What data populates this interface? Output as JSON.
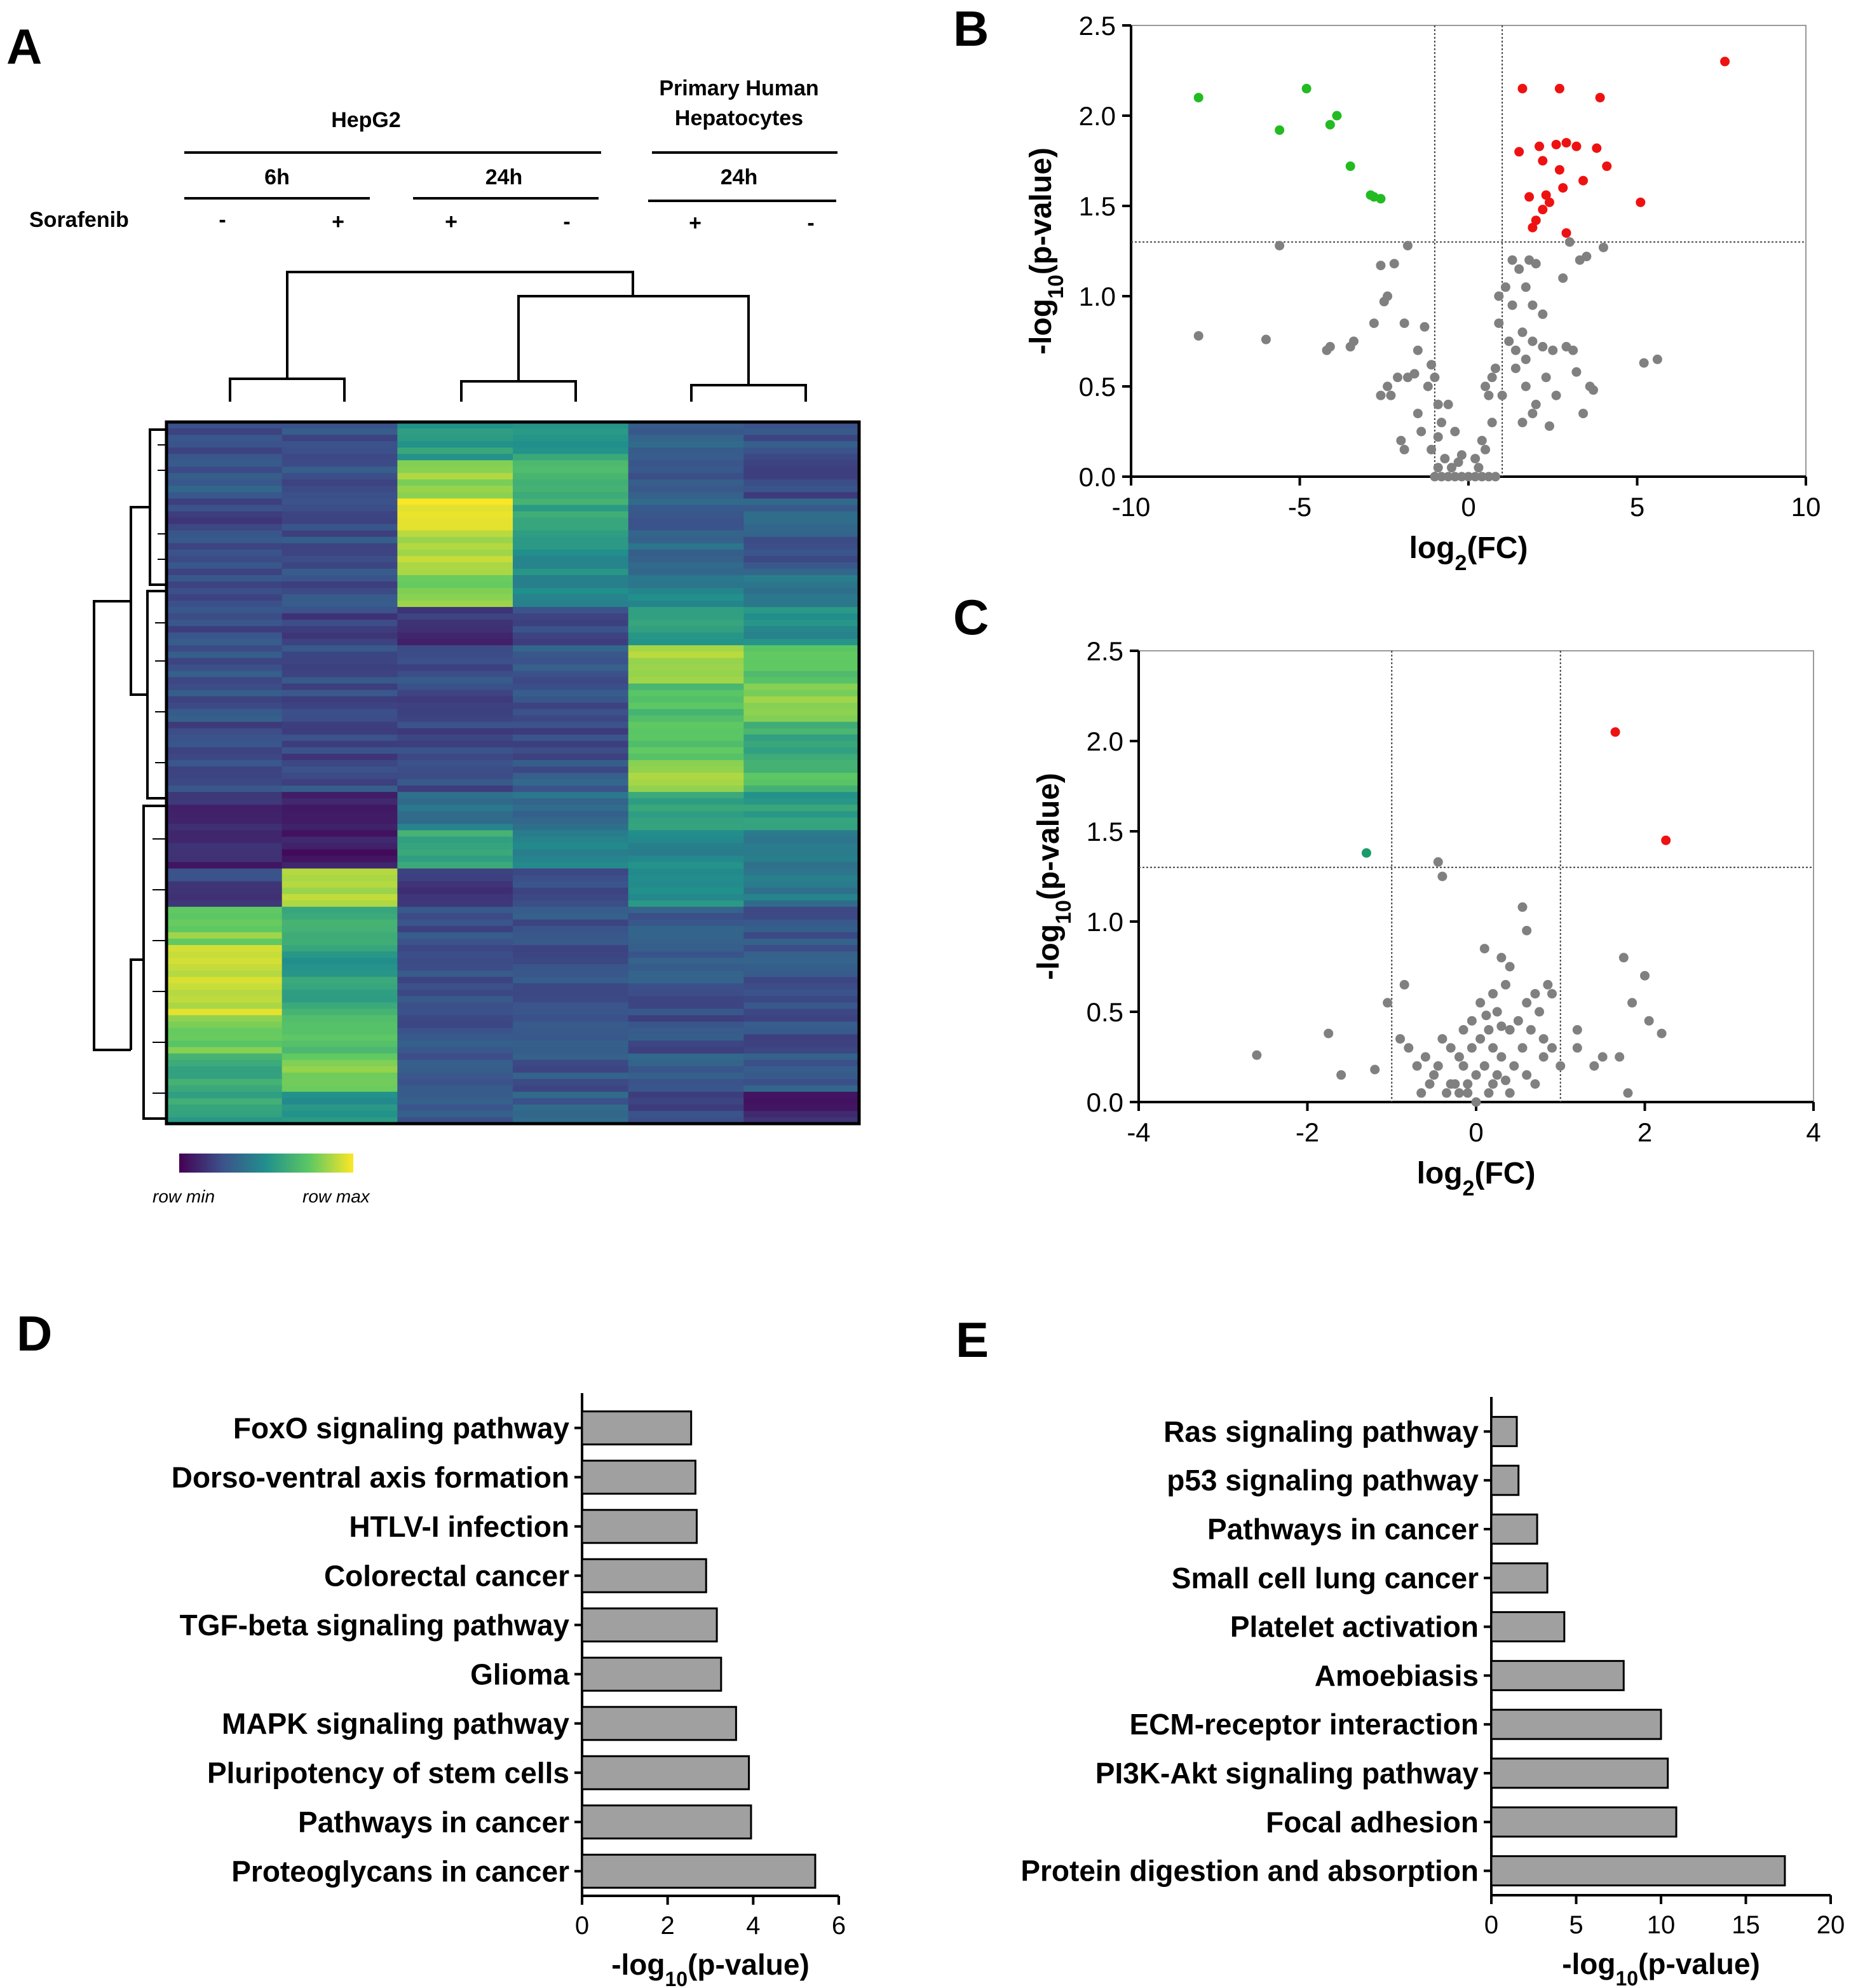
{
  "panels": {
    "A": "A",
    "B": "B",
    "C": "C",
    "D": "D",
    "E": "E"
  },
  "heatmap": {
    "group_hepg2": "HepG2",
    "group_phh_line1": "Primary Human",
    "group_phh_line2": "Hepatocytes",
    "time_6h": "6h",
    "time_24h_hepg2": "24h",
    "time_24h_phh": "24h",
    "sorafenib_label": "Sorafenib",
    "signs": [
      "-",
      "+",
      "+",
      "-",
      "+",
      "-"
    ],
    "legend_min": "row min",
    "legend_max": "row max",
    "palette": [
      "#440154",
      "#3b528b",
      "#21908c",
      "#5dc863",
      "#fde725"
    ],
    "columns": 6,
    "row_segments": [
      [
        0.25,
        0.25,
        0.55,
        0.55,
        0.3,
        0.25
      ],
      [
        0.28,
        0.25,
        0.85,
        0.65,
        0.28,
        0.22
      ],
      [
        0.22,
        0.22,
        0.95,
        0.6,
        0.3,
        0.3
      ],
      [
        0.26,
        0.26,
        0.88,
        0.5,
        0.35,
        0.28
      ],
      [
        0.25,
        0.24,
        0.8,
        0.45,
        0.45,
        0.38
      ],
      [
        0.24,
        0.2,
        0.15,
        0.2,
        0.55,
        0.5
      ],
      [
        0.26,
        0.25,
        0.25,
        0.28,
        0.85,
        0.75
      ],
      [
        0.25,
        0.22,
        0.22,
        0.24,
        0.7,
        0.8
      ],
      [
        0.22,
        0.2,
        0.22,
        0.22,
        0.75,
        0.62
      ],
      [
        0.26,
        0.25,
        0.24,
        0.28,
        0.82,
        0.7
      ],
      [
        0.15,
        0.1,
        0.4,
        0.35,
        0.6,
        0.55
      ],
      [
        0.12,
        0.08,
        0.62,
        0.45,
        0.48,
        0.42
      ],
      [
        0.2,
        0.85,
        0.15,
        0.25,
        0.5,
        0.4
      ],
      [
        0.8,
        0.65,
        0.25,
        0.25,
        0.3,
        0.28
      ],
      [
        0.88,
        0.55,
        0.25,
        0.24,
        0.28,
        0.26
      ],
      [
        0.92,
        0.6,
        0.26,
        0.26,
        0.26,
        0.26
      ],
      [
        0.78,
        0.7,
        0.25,
        0.25,
        0.24,
        0.25
      ],
      [
        0.62,
        0.8,
        0.28,
        0.27,
        0.3,
        0.28
      ],
      [
        0.58,
        0.52,
        0.27,
        0.3,
        0.22,
        0.1
      ]
    ]
  },
  "chart_data": [
    {
      "id": "B",
      "type": "scatter",
      "xlabel": "log2(FC)",
      "ylabel": "-log10(p-value)",
      "xlim": [
        -10,
        10
      ],
      "ylim": [
        0,
        2.5
      ],
      "xticks": [
        "-10",
        "-5",
        "0",
        "5",
        "10"
      ],
      "yticks": [
        "0.0",
        "0.5",
        "1.0",
        "1.5",
        "2.0",
        "2.5"
      ],
      "thresholds": {
        "x": [
          -1,
          1
        ],
        "y": 1.3
      },
      "colors": {
        "down": "#22bb22",
        "up": "#ee1111",
        "ns": "#808080"
      },
      "down": [
        [
          -8.0,
          2.1
        ],
        [
          -4.8,
          2.15
        ],
        [
          -5.6,
          1.92
        ],
        [
          -4.1,
          1.95
        ],
        [
          -3.9,
          2.0
        ],
        [
          -3.5,
          1.72
        ],
        [
          -2.9,
          1.56
        ],
        [
          -2.6,
          1.54
        ],
        [
          -2.8,
          1.55
        ]
      ],
      "up": [
        [
          7.6,
          2.3
        ],
        [
          1.6,
          2.15
        ],
        [
          2.7,
          2.15
        ],
        [
          3.9,
          2.1
        ],
        [
          2.1,
          1.83
        ],
        [
          2.6,
          1.84
        ],
        [
          2.9,
          1.85
        ],
        [
          3.2,
          1.83
        ],
        [
          3.8,
          1.82
        ],
        [
          4.1,
          1.72
        ],
        [
          1.5,
          1.8
        ],
        [
          2.2,
          1.75
        ],
        [
          2.7,
          1.7
        ],
        [
          3.4,
          1.64
        ],
        [
          1.8,
          1.55
        ],
        [
          2.4,
          1.52
        ],
        [
          2.2,
          1.48
        ],
        [
          2.0,
          1.42
        ],
        [
          1.9,
          1.38
        ],
        [
          2.9,
          1.35
        ],
        [
          5.1,
          1.52
        ],
        [
          2.3,
          1.56
        ],
        [
          2.8,
          1.6
        ]
      ],
      "ns": [
        [
          -8.0,
          0.78
        ],
        [
          -6.0,
          0.76
        ],
        [
          -5.6,
          1.28
        ],
        [
          -4.1,
          0.72
        ],
        [
          -4.2,
          0.7
        ],
        [
          -3.5,
          0.72
        ],
        [
          -3.4,
          0.75
        ],
        [
          -2.6,
          1.17
        ],
        [
          -2.4,
          1.0
        ],
        [
          -2.2,
          1.18
        ],
        [
          -1.8,
          1.28
        ],
        [
          -2.5,
          0.97
        ],
        [
          -1.9,
          0.85
        ],
        [
          -2.8,
          0.85
        ],
        [
          -1.5,
          0.7
        ],
        [
          -1.3,
          0.83
        ],
        [
          -2.3,
          0.45
        ],
        [
          -2.1,
          0.55
        ],
        [
          -1.8,
          0.55
        ],
        [
          -1.6,
          0.57
        ],
        [
          -2.4,
          0.5
        ],
        [
          -2.6,
          0.45
        ],
        [
          -2.0,
          0.2
        ],
        [
          -1.9,
          0.15
        ],
        [
          -1.4,
          0.25
        ],
        [
          -1.2,
          0.5
        ],
        [
          -1.1,
          0.62
        ],
        [
          -1.0,
          0.55
        ],
        [
          -0.9,
          0.4
        ],
        [
          -0.8,
          0.3
        ],
        [
          -1.1,
          0.15
        ],
        [
          -0.9,
          0.05
        ],
        [
          -0.7,
          0.1
        ],
        [
          -0.5,
          0.05
        ],
        [
          -0.3,
          0.08
        ],
        [
          -0.2,
          0.12
        ],
        [
          0.0,
          0.0
        ],
        [
          0.2,
          0.1
        ],
        [
          0.3,
          0.05
        ],
        [
          0.4,
          0.2
        ],
        [
          0.5,
          0.15
        ],
        [
          0.6,
          0.45
        ],
        [
          0.7,
          0.55
        ],
        [
          0.8,
          0.6
        ],
        [
          1.0,
          0.45
        ],
        [
          1.2,
          0.75
        ],
        [
          1.4,
          0.7
        ],
        [
          0.9,
          1.0
        ],
        [
          1.1,
          1.05
        ],
        [
          1.3,
          1.2
        ],
        [
          1.5,
          1.15
        ],
        [
          1.8,
          1.2
        ],
        [
          2.0,
          1.18
        ],
        [
          1.7,
          1.05
        ],
        [
          1.9,
          0.95
        ],
        [
          2.2,
          0.9
        ],
        [
          1.6,
          0.8
        ],
        [
          1.4,
          0.6
        ],
        [
          1.7,
          0.65
        ],
        [
          1.9,
          0.75
        ],
        [
          2.2,
          0.72
        ],
        [
          2.5,
          0.7
        ],
        [
          2.9,
          0.72
        ],
        [
          3.1,
          0.7
        ],
        [
          1.7,
          0.5
        ],
        [
          2.0,
          0.4
        ],
        [
          2.3,
          0.55
        ],
        [
          2.6,
          0.45
        ],
        [
          2.4,
          0.28
        ],
        [
          1.9,
          0.35
        ],
        [
          3.4,
          0.35
        ],
        [
          3.2,
          0.58
        ],
        [
          3.6,
          0.5
        ],
        [
          3.7,
          0.48
        ],
        [
          4.0,
          1.27
        ],
        [
          3.0,
          1.3
        ],
        [
          3.5,
          1.22
        ],
        [
          3.3,
          1.2
        ],
        [
          5.2,
          0.63
        ],
        [
          5.6,
          0.65
        ],
        [
          1.3,
          0.95
        ],
        [
          1.6,
          0.3
        ],
        [
          2.8,
          1.1
        ],
        [
          0.5,
          0.5
        ],
        [
          0.9,
          0.85
        ],
        [
          0.7,
          0.3
        ],
        [
          -0.6,
          0.4
        ],
        [
          -0.4,
          0.25
        ],
        [
          -1.5,
          0.35
        ],
        [
          -0.9,
          0.22
        ],
        [
          -0.8,
          0.0
        ],
        [
          -0.6,
          0.0
        ],
        [
          -0.4,
          0.0
        ],
        [
          -0.2,
          0.0
        ],
        [
          0.2,
          0.0
        ],
        [
          0.4,
          0.0
        ],
        [
          0.6,
          0.0
        ],
        [
          -1.0,
          0.0
        ],
        [
          0.8,
          0.0
        ]
      ]
    },
    {
      "id": "C",
      "type": "scatter",
      "xlabel": "log2(FC)",
      "ylabel": "-log10(p-value)",
      "xlim": [
        -4,
        4
      ],
      "ylim": [
        0,
        2.5
      ],
      "xticks": [
        "-4",
        "-2",
        "0",
        "2",
        "4"
      ],
      "yticks": [
        "0.0",
        "0.5",
        "1.0",
        "1.5",
        "2.0",
        "2.5"
      ],
      "thresholds": {
        "x": [
          -1,
          1
        ],
        "y": 1.3
      },
      "colors": {
        "down": "#1a9c6a",
        "up": "#ee1111",
        "ns": "#808080"
      },
      "down": [
        [
          -1.3,
          1.38
        ]
      ],
      "up": [
        [
          1.65,
          2.05
        ],
        [
          2.25,
          1.45
        ]
      ],
      "ns": [
        [
          -2.6,
          0.26
        ],
        [
          -1.75,
          0.38
        ],
        [
          -1.6,
          0.15
        ],
        [
          -1.2,
          0.18
        ],
        [
          -1.05,
          0.55
        ],
        [
          -0.85,
          0.65
        ],
        [
          -0.4,
          1.25
        ],
        [
          -0.45,
          1.33
        ],
        [
          -0.9,
          0.35
        ],
        [
          -0.8,
          0.3
        ],
        [
          -0.7,
          0.2
        ],
        [
          -0.6,
          0.25
        ],
        [
          -0.5,
          0.15
        ],
        [
          -0.4,
          0.35
        ],
        [
          -0.3,
          0.1
        ],
        [
          -0.2,
          0.25
        ],
        [
          -0.1,
          0.05
        ],
        [
          0.0,
          0.15
        ],
        [
          0.1,
          0.2
        ],
        [
          0.2,
          0.3
        ],
        [
          0.3,
          0.25
        ],
        [
          0.4,
          0.4
        ],
        [
          0.5,
          0.45
        ],
        [
          0.6,
          0.55
        ],
        [
          0.7,
          0.6
        ],
        [
          0.8,
          0.35
        ],
        [
          0.9,
          0.3
        ],
        [
          1.0,
          0.2
        ],
        [
          0.2,
          0.6
        ],
        [
          0.3,
          0.8
        ],
        [
          0.1,
          0.85
        ],
        [
          0.4,
          0.75
        ],
        [
          0.55,
          1.08
        ],
        [
          0.6,
          0.95
        ],
        [
          0.35,
          0.65
        ],
        [
          0.25,
          0.5
        ],
        [
          0.15,
          0.4
        ],
        [
          0.05,
          0.35
        ],
        [
          -0.05,
          0.3
        ],
        [
          -0.15,
          0.2
        ],
        [
          -0.25,
          0.1
        ],
        [
          -0.35,
          0.05
        ],
        [
          -0.45,
          0.2
        ],
        [
          -0.55,
          0.1
        ],
        [
          -0.65,
          0.05
        ],
        [
          -0.3,
          0.3
        ],
        [
          0.2,
          0.1
        ],
        [
          0.4,
          0.05
        ],
        [
          0.6,
          0.15
        ],
        [
          0.8,
          0.25
        ],
        [
          0.7,
          0.1
        ],
        [
          0.9,
          0.6
        ],
        [
          0.85,
          0.65
        ],
        [
          1.2,
          0.3
        ],
        [
          1.4,
          0.2
        ],
        [
          1.5,
          0.25
        ],
        [
          1.2,
          0.4
        ],
        [
          1.75,
          0.8
        ],
        [
          1.85,
          0.55
        ],
        [
          2.0,
          0.7
        ],
        [
          2.05,
          0.45
        ],
        [
          2.2,
          0.38
        ],
        [
          1.7,
          0.25
        ],
        [
          1.8,
          0.05
        ],
        [
          0.0,
          0.0
        ],
        [
          -0.1,
          0.1
        ],
        [
          0.15,
          0.05
        ],
        [
          -0.2,
          0.05
        ],
        [
          0.45,
          0.2
        ],
        [
          0.35,
          0.12
        ],
        [
          0.55,
          0.3
        ],
        [
          0.65,
          0.4
        ],
        [
          0.75,
          0.5
        ],
        [
          0.25,
          0.15
        ],
        [
          -0.05,
          0.45
        ],
        [
          0.05,
          0.55
        ],
        [
          0.12,
          0.48
        ],
        [
          -0.15,
          0.4
        ],
        [
          0.3,
          0.42
        ]
      ]
    },
    {
      "id": "D",
      "type": "bar",
      "orientation": "horizontal",
      "categories": [
        "FoxO signaling pathway",
        "Dorso-ventral axis formation",
        "HTLV-I infection",
        "Colorectal cancer",
        "TGF-beta signaling pathway",
        "Glioma",
        "MAPK signaling pathway",
        "Pluripotency of stem cells",
        "Pathways in cancer",
        "Proteoglycans in cancer"
      ],
      "values": [
        2.55,
        2.65,
        2.68,
        2.9,
        3.15,
        3.25,
        3.6,
        3.9,
        3.95,
        5.45
      ],
      "xlabel": "-log10(p-value)",
      "xlim": [
        0,
        6
      ],
      "xticks": [
        "0",
        "2",
        "4",
        "6"
      ],
      "bar_color": "#a0a0a0"
    },
    {
      "id": "E",
      "type": "bar",
      "orientation": "horizontal",
      "categories": [
        "Ras signaling pathway",
        "p53 signaling pathway",
        "Pathways in cancer",
        "Small cell lung cancer",
        "Platelet activation",
        "Amoebiasis",
        "ECM-receptor interaction",
        "PI3K-Akt signaling pathway",
        "Focal adhesion",
        "Protein digestion and absorption"
      ],
      "values": [
        1.5,
        1.6,
        2.7,
        3.3,
        4.3,
        7.8,
        10.0,
        10.4,
        10.9,
        17.3
      ],
      "xlabel": "-log10(p-value)",
      "xlim": [
        0,
        20
      ],
      "xticks": [
        "0",
        "5",
        "10",
        "15",
        "20"
      ],
      "bar_color": "#a0a0a0"
    }
  ]
}
